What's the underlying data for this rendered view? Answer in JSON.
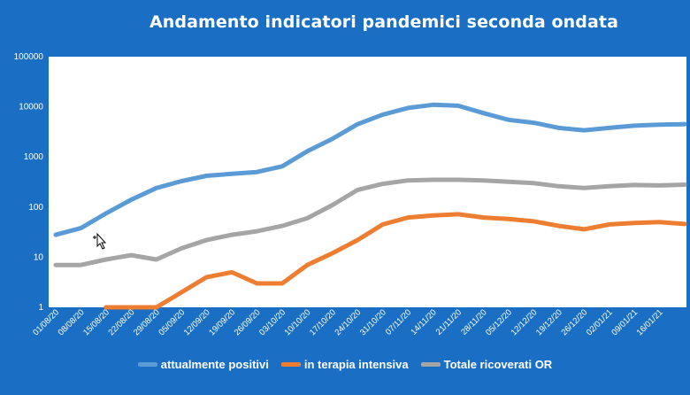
{
  "chart_data": {
    "type": "line",
    "title": "Andamento indicatori pandemici seconda ondata",
    "y_scale": "log",
    "ylim": [
      1,
      100000
    ],
    "y_ticks": [
      "1",
      "10",
      "100",
      "1000",
      "10000",
      "100000"
    ],
    "y_tick_values": [
      1,
      10,
      100,
      1000,
      10000,
      100000
    ],
    "x_tick_labels": [
      "01/08/20",
      "08/08/20",
      "15/08/20",
      "22/08/20",
      "29/08/20",
      "05/09/20",
      "12/09/20",
      "19/09/20",
      "26/09/20",
      "03/10/20",
      "10/10/20",
      "17/10/20",
      "24/10/20",
      "31/10/20",
      "07/11/20",
      "14/11/20",
      "21/11/20",
      "28/11/20",
      "05/12/20",
      "12/12/20",
      "19/12/20",
      "26/12/20",
      "02/01/21",
      "09/01/21",
      "16/01/21"
    ],
    "x": [
      "01/08/20",
      "08/08/20",
      "15/08/20",
      "22/08/20",
      "29/08/20",
      "05/09/20",
      "12/09/20",
      "19/09/20",
      "26/09/20",
      "03/10/20",
      "10/10/20",
      "17/10/20",
      "24/10/20",
      "31/10/20",
      "07/11/20",
      "14/11/20",
      "21/11/20",
      "28/11/20",
      "05/12/20",
      "12/12/20",
      "19/12/20",
      "26/12/20",
      "02/01/21",
      "09/01/21",
      "16/01/21",
      "21/01/21"
    ],
    "series": [
      {
        "name": "attualmente positivi",
        "color": "#5b9bd5",
        "values": [
          28,
          38,
          75,
          140,
          240,
          330,
          420,
          460,
          500,
          650,
          1300,
          2300,
          4500,
          7000,
          9500,
          11000,
          10500,
          7500,
          5500,
          4800,
          3800,
          3400,
          3800,
          4200,
          4400,
          4500
        ]
      },
      {
        "name": "in terapia intensiva",
        "color": "#ed7d31",
        "values": [
          null,
          null,
          1,
          1,
          1,
          2,
          4,
          5,
          3,
          3,
          7,
          12,
          22,
          45,
          62,
          68,
          72,
          62,
          58,
          52,
          42,
          36,
          45,
          48,
          50,
          46
        ]
      },
      {
        "name": "Totale ricoverati OR",
        "color": "#a5a5a5",
        "values": [
          7,
          7,
          9,
          11,
          9,
          15,
          22,
          28,
          33,
          42,
          60,
          110,
          220,
          290,
          340,
          350,
          350,
          340,
          320,
          300,
          260,
          240,
          260,
          275,
          270,
          280
        ]
      }
    ],
    "legend_position": "bottom",
    "grid": false
  }
}
